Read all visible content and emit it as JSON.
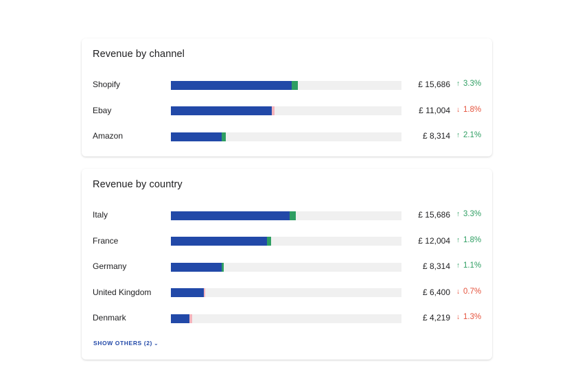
{
  "colors": {
    "bar": "#2249a8",
    "track": "#f0f0f0",
    "up": "#2e9e62",
    "down_bar": "#f4b4bd",
    "down_text": "#e5533d"
  },
  "channel": {
    "title": "Revenue by channel",
    "rows": [
      {
        "label": "Shopify",
        "value": "£ 15,686",
        "change": "3.3%",
        "direction": "up",
        "fraction": 0.523,
        "delta_fraction": 0.027
      },
      {
        "label": "Ebay",
        "value": "£ 11,004",
        "change": "1.8%",
        "direction": "down",
        "fraction": 0.437,
        "delta_fraction": 0.011
      },
      {
        "label": "Amazon",
        "value": "£ 8,314",
        "change": "2.1%",
        "direction": "up",
        "fraction": 0.219,
        "delta_fraction": 0.018
      }
    ]
  },
  "country": {
    "title": "Revenue by country",
    "rows": [
      {
        "label": "Italy",
        "value": "£ 15,686",
        "change": "3.3%",
        "direction": "up",
        "fraction": 0.516,
        "delta_fraction": 0.027
      },
      {
        "label": "France",
        "value": "£ 12,004",
        "change": "1.8%",
        "direction": "up",
        "fraction": 0.417,
        "delta_fraction": 0.017
      },
      {
        "label": "Germany",
        "value": "£ 8,314",
        "change": "1.1%",
        "direction": "up",
        "fraction": 0.219,
        "delta_fraction": 0.009
      },
      {
        "label": "United Kingdom",
        "value": "£ 6,400",
        "change": "0.7%",
        "direction": "down",
        "fraction": 0.143,
        "delta_fraction": 0.006
      },
      {
        "label": "Denmark",
        "value": "£ 4,219",
        "change": "1.3%",
        "direction": "down",
        "fraction": 0.08,
        "delta_fraction": 0.011
      }
    ],
    "show_others": "SHOW OTHERS (2)"
  }
}
